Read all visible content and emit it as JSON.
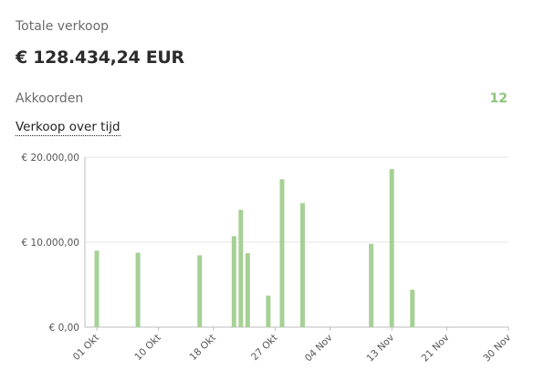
{
  "summary": {
    "total_sales_label": "Totale verkoop",
    "total_sales_value": "€ 128.434,24 EUR",
    "deals_label": "Akkoorden",
    "deals_value": "12",
    "chart_link": "Verkoop over tijd"
  },
  "colors": {
    "bar": "#a6d195",
    "accent": "#8cc67a",
    "grid": "#e6e6e6",
    "axis": "#bdbdbd"
  },
  "chart_data": {
    "type": "bar",
    "title": "",
    "xlabel": "",
    "ylabel": "",
    "ylim": [
      0,
      20000
    ],
    "yticks": [
      0,
      10000,
      20000
    ],
    "ytick_labels": [
      "€ 0,00",
      "€ 10.000,00",
      "€ 20.000,00"
    ],
    "x_range": [
      "2023-10-01",
      "2023-11-30"
    ],
    "xtick_dates": [
      "2023-10-01",
      "2023-10-10",
      "2023-10-18",
      "2023-10-27",
      "2023-11-04",
      "2023-11-13",
      "2023-11-21",
      "2023-11-30"
    ],
    "xtick_labels": [
      "01 Okt",
      "10 Okt",
      "18 Okt",
      "27 Okt",
      "04 Nov",
      "13 Nov",
      "21 Nov",
      "30 Nov"
    ],
    "grid": true,
    "series": [
      {
        "points": [
          {
            "x": "2023-10-01",
            "y": 9000
          },
          {
            "x": "2023-10-07",
            "y": 8750
          },
          {
            "x": "2023-10-16",
            "y": 8450
          },
          {
            "x": "2023-10-21",
            "y": 10700
          },
          {
            "x": "2023-10-22",
            "y": 13800
          },
          {
            "x": "2023-10-23",
            "y": 8700
          },
          {
            "x": "2023-10-26",
            "y": 3700
          },
          {
            "x": "2023-10-28",
            "y": 17400
          },
          {
            "x": "2023-10-31",
            "y": 14600
          },
          {
            "x": "2023-11-10",
            "y": 9800
          },
          {
            "x": "2023-11-13",
            "y": 18600
          },
          {
            "x": "2023-11-16",
            "y": 4400
          }
        ]
      }
    ]
  }
}
